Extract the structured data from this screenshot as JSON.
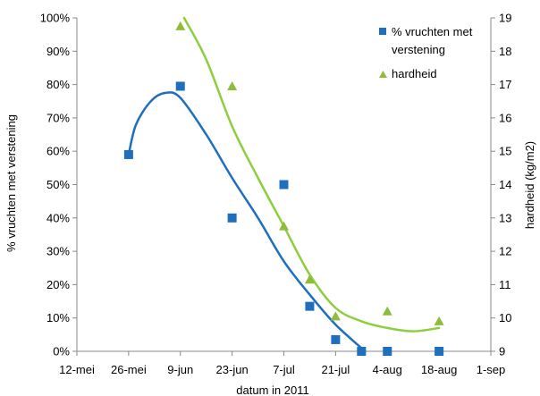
{
  "chart_data": {
    "type": "scatter",
    "xlabel": "datum in 2011",
    "ylabel_left": "% vruchten met verstening",
    "ylabel_right": "hardheid (kg/m2)",
    "x_ticks": [
      "12-mei",
      "26-mei",
      "9-jun",
      "23-jun",
      "7-jul",
      "21-jul",
      "4-aug",
      "18-aug",
      "1-sep"
    ],
    "x_range": [
      "2011-05-12",
      "2011-09-01"
    ],
    "y_left_range": [
      0,
      100
    ],
    "y_left_ticks": [
      "0%",
      "10%",
      "20%",
      "30%",
      "40%",
      "50%",
      "60%",
      "70%",
      "80%",
      "90%",
      "100%"
    ],
    "y_right_range": [
      9,
      19
    ],
    "y_right_ticks": [
      "9",
      "10",
      "11",
      "12",
      "13",
      "14",
      "15",
      "16",
      "17",
      "18",
      "19"
    ],
    "grid": false,
    "legend_position": "top-right",
    "series": [
      {
        "name": "% vruchten met verstening",
        "axis": "left",
        "marker": "square",
        "color": "#1f6fbf",
        "points": [
          {
            "x": "2011-05-26",
            "y": 59
          },
          {
            "x": "2011-06-09",
            "y": 79.5
          },
          {
            "x": "2011-06-23",
            "y": 40
          },
          {
            "x": "2011-07-07",
            "y": 50
          },
          {
            "x": "2011-07-14",
            "y": 13.5
          },
          {
            "x": "2011-07-21",
            "y": 3.5
          },
          {
            "x": "2011-07-28",
            "y": 0
          },
          {
            "x": "2011-08-04",
            "y": 0
          },
          {
            "x": "2011-08-18",
            "y": 0
          }
        ],
        "trend": [
          {
            "x": "2011-05-26",
            "y": 59
          },
          {
            "x": "2011-05-28",
            "y": 68
          },
          {
            "x": "2011-06-01",
            "y": 75
          },
          {
            "x": "2011-06-05",
            "y": 77.5
          },
          {
            "x": "2011-06-09",
            "y": 76
          },
          {
            "x": "2011-06-16",
            "y": 65
          },
          {
            "x": "2011-06-23",
            "y": 52
          },
          {
            "x": "2011-06-30",
            "y": 40
          },
          {
            "x": "2011-07-07",
            "y": 27
          },
          {
            "x": "2011-07-14",
            "y": 17
          },
          {
            "x": "2011-07-21",
            "y": 8
          },
          {
            "x": "2011-07-29",
            "y": 0
          }
        ]
      },
      {
        "name": "hardheid",
        "axis": "right",
        "marker": "triangle",
        "color": "#8fbc3c",
        "trend_color": "#8ccf3e",
        "points": [
          {
            "x": "2011-06-09",
            "y": 18.75
          },
          {
            "x": "2011-06-23",
            "y": 16.95
          },
          {
            "x": "2011-07-07",
            "y": 12.75
          },
          {
            "x": "2011-07-14",
            "y": 11.15
          },
          {
            "x": "2011-07-21",
            "y": 10.05
          },
          {
            "x": "2011-08-04",
            "y": 10.2
          },
          {
            "x": "2011-08-18",
            "y": 9.9
          }
        ],
        "trend": [
          {
            "x": "2011-06-10",
            "y": 19
          },
          {
            "x": "2011-06-16",
            "y": 17.75
          },
          {
            "x": "2011-06-23",
            "y": 15.75
          },
          {
            "x": "2011-06-30",
            "y": 14.2
          },
          {
            "x": "2011-07-07",
            "y": 12.75
          },
          {
            "x": "2011-07-14",
            "y": 11.3
          },
          {
            "x": "2011-07-21",
            "y": 10.3
          },
          {
            "x": "2011-07-28",
            "y": 9.9
          },
          {
            "x": "2011-08-04",
            "y": 9.7
          },
          {
            "x": "2011-08-11",
            "y": 9.6
          },
          {
            "x": "2011-08-18",
            "y": 9.7
          }
        ]
      }
    ]
  }
}
